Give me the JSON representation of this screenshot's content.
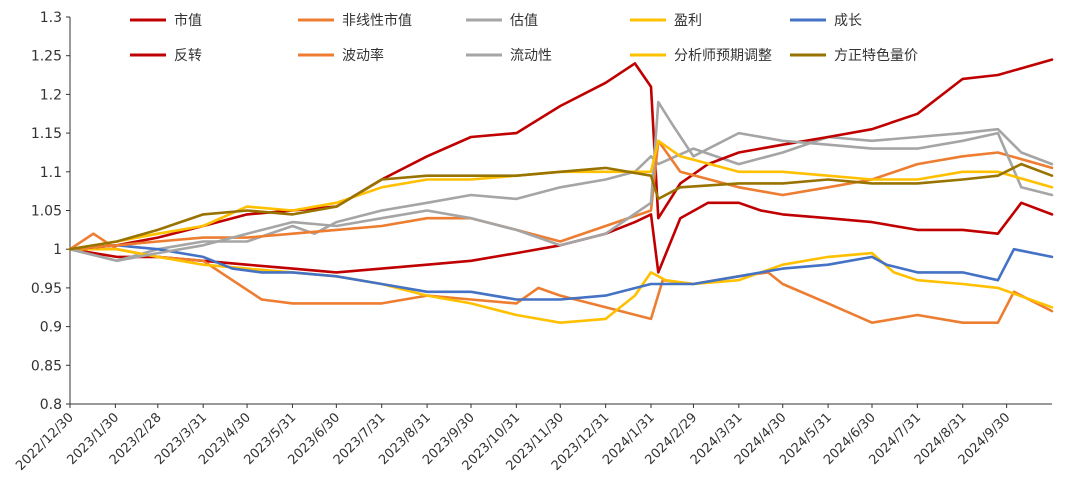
{
  "chart_data": {
    "type": "line",
    "title": "",
    "xlabel": "",
    "ylabel": "",
    "ylim": [
      0.8,
      1.3
    ],
    "yticks": [
      "0.8",
      "0.85",
      "0.9",
      "0.95",
      "1",
      "1.05",
      "1.1",
      "1.15",
      "1.2",
      "1.25",
      "1.3"
    ],
    "x_tick_labels": [
      "2022/12/30",
      "2023/1/30",
      "2023/2/28",
      "2023/3/31",
      "2023/4/30",
      "2023/5/31",
      "2023/6/30",
      "2023/7/31",
      "2023/8/31",
      "2023/9/30",
      "2023/10/31",
      "2023/11/30",
      "2023/12/31",
      "2024/1/31",
      "2024/2/29",
      "2024/3/31",
      "2024/4/30",
      "2024/5/31",
      "2024/6/30",
      "2024/7/31",
      "2024/8/31",
      "2024/9/30"
    ],
    "x_start": "2022/12/30",
    "x_end": "2024/10/31",
    "grid": false,
    "legend_position": "top",
    "series": [
      {
        "name": "市值",
        "color": "#C00000",
        "points": [
          [
            "2022/12/30",
            1.0
          ],
          [
            "2023/1/31",
            0.99
          ],
          [
            "2023/2/28",
            0.99
          ],
          [
            "2023/3/31",
            0.985
          ],
          [
            "2023/4/30",
            0.98
          ],
          [
            "2023/5/31",
            0.975
          ],
          [
            "2023/6/30",
            0.97
          ],
          [
            "2023/7/31",
            0.975
          ],
          [
            "2023/8/31",
            0.98
          ],
          [
            "2023/9/30",
            0.985
          ],
          [
            "2023/10/31",
            0.995
          ],
          [
            "2023/11/30",
            1.005
          ],
          [
            "2023/12/31",
            1.02
          ],
          [
            "2024/1/20",
            1.035
          ],
          [
            "2024/1/31",
            1.045
          ],
          [
            "2024/2/5",
            0.97
          ],
          [
            "2024/2/20",
            1.04
          ],
          [
            "2024/3/10",
            1.06
          ],
          [
            "2024/3/31",
            1.06
          ],
          [
            "2024/4/15",
            1.05
          ],
          [
            "2024/4/30",
            1.045
          ],
          [
            "2024/5/31",
            1.04
          ],
          [
            "2024/6/30",
            1.035
          ],
          [
            "2024/7/31",
            1.025
          ],
          [
            "2024/8/31",
            1.025
          ],
          [
            "2024/9/24",
            1.02
          ],
          [
            "2024/10/10",
            1.06
          ],
          [
            "2024/10/31",
            1.045
          ]
        ]
      },
      {
        "name": "非线性市值",
        "color": "#ED7D31",
        "points": [
          [
            "2022/12/30",
            1.0
          ],
          [
            "2023/1/15",
            1.02
          ],
          [
            "2023/1/31",
            1.0
          ],
          [
            "2023/2/28",
            0.99
          ],
          [
            "2023/3/31",
            0.985
          ],
          [
            "2023/4/20",
            0.96
          ],
          [
            "2023/5/10",
            0.935
          ],
          [
            "2023/5/31",
            0.93
          ],
          [
            "2023/6/30",
            0.93
          ],
          [
            "2023/7/31",
            0.93
          ],
          [
            "2023/8/31",
            0.94
          ],
          [
            "2023/9/30",
            0.935
          ],
          [
            "2023/10/31",
            0.93
          ],
          [
            "2023/11/15",
            0.95
          ],
          [
            "2023/11/30",
            0.94
          ],
          [
            "2023/12/31",
            0.925
          ],
          [
            "2024/1/31",
            0.91
          ],
          [
            "2024/2/8",
            0.96
          ],
          [
            "2024/2/29",
            0.955
          ],
          [
            "2024/3/31",
            0.965
          ],
          [
            "2024/4/20",
            0.97
          ],
          [
            "2024/4/30",
            0.955
          ],
          [
            "2024/5/31",
            0.93
          ],
          [
            "2024/6/30",
            0.905
          ],
          [
            "2024/7/31",
            0.915
          ],
          [
            "2024/8/31",
            0.905
          ],
          [
            "2024/9/24",
            0.905
          ],
          [
            "2024/10/5",
            0.945
          ],
          [
            "2024/10/31",
            0.92
          ]
        ]
      },
      {
        "name": "估值",
        "color": "#A5A5A5",
        "points": [
          [
            "2022/12/30",
            1.0
          ],
          [
            "2023/1/31",
            0.985
          ],
          [
            "2023/2/28",
            1.0
          ],
          [
            "2023/3/31",
            1.01
          ],
          [
            "2023/4/30",
            1.01
          ],
          [
            "2023/5/31",
            1.03
          ],
          [
            "2023/6/15",
            1.02
          ],
          [
            "2023/6/30",
            1.035
          ],
          [
            "2023/7/31",
            1.05
          ],
          [
            "2023/8/31",
            1.06
          ],
          [
            "2023/9/30",
            1.07
          ],
          [
            "2023/10/31",
            1.065
          ],
          [
            "2023/11/30",
            1.08
          ],
          [
            "2023/12/31",
            1.09
          ],
          [
            "2024/1/20",
            1.1
          ],
          [
            "2024/1/31",
            1.12
          ],
          [
            "2024/2/5",
            1.11
          ],
          [
            "2024/2/29",
            1.13
          ],
          [
            "2024/3/31",
            1.11
          ],
          [
            "2024/4/30",
            1.125
          ],
          [
            "2024/5/31",
            1.145
          ],
          [
            "2024/6/30",
            1.14
          ],
          [
            "2024/7/31",
            1.145
          ],
          [
            "2024/8/31",
            1.15
          ],
          [
            "2024/9/24",
            1.155
          ],
          [
            "2024/10/10",
            1.125
          ],
          [
            "2024/10/31",
            1.11
          ]
        ]
      },
      {
        "name": "盈利",
        "color": "#FFC000",
        "points": [
          [
            "2022/12/30",
            1.0
          ],
          [
            "2023/1/31",
            1.0
          ],
          [
            "2023/2/28",
            0.99
          ],
          [
            "2023/3/31",
            0.98
          ],
          [
            "2023/4/30",
            0.975
          ],
          [
            "2023/5/31",
            0.97
          ],
          [
            "2023/6/30",
            0.965
          ],
          [
            "2023/7/31",
            0.955
          ],
          [
            "2023/8/31",
            0.94
          ],
          [
            "2023/9/30",
            0.93
          ],
          [
            "2023/10/31",
            0.915
          ],
          [
            "2023/11/30",
            0.905
          ],
          [
            "2023/12/31",
            0.91
          ],
          [
            "2024/1/20",
            0.94
          ],
          [
            "2024/1/31",
            0.97
          ],
          [
            "2024/2/10",
            0.96
          ],
          [
            "2024/2/29",
            0.955
          ],
          [
            "2024/3/31",
            0.96
          ],
          [
            "2024/4/30",
            0.98
          ],
          [
            "2024/5/31",
            0.99
          ],
          [
            "2024/6/30",
            0.995
          ],
          [
            "2024/7/15",
            0.97
          ],
          [
            "2024/7/31",
            0.96
          ],
          [
            "2024/8/31",
            0.955
          ],
          [
            "2024/9/24",
            0.95
          ],
          [
            "2024/10/31",
            0.925
          ]
        ]
      },
      {
        "name": "成长",
        "color": "#4472C4",
        "points": [
          [
            "2022/12/30",
            1.0
          ],
          [
            "2023/1/31",
            1.005
          ],
          [
            "2023/2/28",
            1.0
          ],
          [
            "2023/3/31",
            0.99
          ],
          [
            "2023/4/20",
            0.975
          ],
          [
            "2023/5/10",
            0.97
          ],
          [
            "2023/5/31",
            0.97
          ],
          [
            "2023/6/30",
            0.965
          ],
          [
            "2023/7/31",
            0.955
          ],
          [
            "2023/8/31",
            0.945
          ],
          [
            "2023/9/30",
            0.945
          ],
          [
            "2023/10/31",
            0.935
          ],
          [
            "2023/11/30",
            0.935
          ],
          [
            "2023/12/31",
            0.94
          ],
          [
            "2024/1/31",
            0.955
          ],
          [
            "2024/2/29",
            0.955
          ],
          [
            "2024/3/31",
            0.965
          ],
          [
            "2024/4/30",
            0.975
          ],
          [
            "2024/5/31",
            0.98
          ],
          [
            "2024/6/30",
            0.99
          ],
          [
            "2024/7/10",
            0.98
          ],
          [
            "2024/7/31",
            0.97
          ],
          [
            "2024/8/31",
            0.97
          ],
          [
            "2024/9/24",
            0.96
          ],
          [
            "2024/10/5",
            1.0
          ],
          [
            "2024/10/31",
            0.99
          ]
        ]
      },
      {
        "name": "反转",
        "color": "#C00000",
        "points": [
          [
            "2022/12/30",
            1.0
          ],
          [
            "2023/1/31",
            1.005
          ],
          [
            "2023/2/28",
            1.015
          ],
          [
            "2023/3/31",
            1.03
          ],
          [
            "2023/4/30",
            1.045
          ],
          [
            "2023/5/31",
            1.05
          ],
          [
            "2023/6/30",
            1.055
          ],
          [
            "2023/7/31",
            1.09
          ],
          [
            "2023/8/31",
            1.12
          ],
          [
            "2023/9/30",
            1.145
          ],
          [
            "2023/10/31",
            1.15
          ],
          [
            "2023/11/30",
            1.185
          ],
          [
            "2023/12/31",
            1.215
          ],
          [
            "2024/1/20",
            1.24
          ],
          [
            "2024/1/31",
            1.21
          ],
          [
            "2024/2/5",
            1.04
          ],
          [
            "2024/2/20",
            1.085
          ],
          [
            "2024/3/10",
            1.11
          ],
          [
            "2024/3/31",
            1.125
          ],
          [
            "2024/4/30",
            1.135
          ],
          [
            "2024/5/31",
            1.145
          ],
          [
            "2024/6/30",
            1.155
          ],
          [
            "2024/7/31",
            1.175
          ],
          [
            "2024/8/31",
            1.22
          ],
          [
            "2024/9/24",
            1.225
          ],
          [
            "2024/10/31",
            1.245
          ]
        ]
      },
      {
        "name": "波动率",
        "color": "#ED7D31",
        "points": [
          [
            "2022/12/30",
            1.0
          ],
          [
            "2023/1/31",
            1.005
          ],
          [
            "2023/2/28",
            1.01
          ],
          [
            "2023/3/31",
            1.015
          ],
          [
            "2023/4/30",
            1.015
          ],
          [
            "2023/5/31",
            1.02
          ],
          [
            "2023/6/30",
            1.025
          ],
          [
            "2023/7/31",
            1.03
          ],
          [
            "2023/8/31",
            1.04
          ],
          [
            "2023/9/30",
            1.04
          ],
          [
            "2023/10/31",
            1.025
          ],
          [
            "2023/11/30",
            1.01
          ],
          [
            "2023/12/31",
            1.03
          ],
          [
            "2024/1/31",
            1.05
          ],
          [
            "2024/2/5",
            1.14
          ],
          [
            "2024/2/20",
            1.1
          ],
          [
            "2024/3/31",
            1.08
          ],
          [
            "2024/4/30",
            1.07
          ],
          [
            "2024/5/31",
            1.08
          ],
          [
            "2024/6/30",
            1.09
          ],
          [
            "2024/7/31",
            1.11
          ],
          [
            "2024/8/31",
            1.12
          ],
          [
            "2024/9/24",
            1.125
          ],
          [
            "2024/10/31",
            1.105
          ]
        ]
      },
      {
        "name": "流动性",
        "color": "#A5A5A5",
        "points": [
          [
            "2022/12/30",
            1.0
          ],
          [
            "2023/1/31",
            0.985
          ],
          [
            "2023/2/28",
            0.995
          ],
          [
            "2023/3/31",
            1.005
          ],
          [
            "2023/4/30",
            1.02
          ],
          [
            "2023/5/31",
            1.035
          ],
          [
            "2023/6/30",
            1.03
          ],
          [
            "2023/7/31",
            1.04
          ],
          [
            "2023/8/31",
            1.05
          ],
          [
            "2023/9/30",
            1.04
          ],
          [
            "2023/10/31",
            1.025
          ],
          [
            "2023/11/30",
            1.005
          ],
          [
            "2023/12/31",
            1.02
          ],
          [
            "2024/1/31",
            1.06
          ],
          [
            "2024/2/5",
            1.19
          ],
          [
            "2024/2/15",
            1.16
          ],
          [
            "2024/2/29",
            1.12
          ],
          [
            "2024/3/31",
            1.15
          ],
          [
            "2024/4/30",
            1.14
          ],
          [
            "2024/5/31",
            1.135
          ],
          [
            "2024/6/30",
            1.13
          ],
          [
            "2024/7/31",
            1.13
          ],
          [
            "2024/8/31",
            1.14
          ],
          [
            "2024/9/24",
            1.15
          ],
          [
            "2024/10/10",
            1.08
          ],
          [
            "2024/10/31",
            1.07
          ]
        ]
      },
      {
        "name": "分析师预期调整",
        "color": "#FFC000",
        "points": [
          [
            "2022/12/30",
            1.0
          ],
          [
            "2023/1/31",
            1.01
          ],
          [
            "2023/2/28",
            1.02
          ],
          [
            "2023/3/31",
            1.03
          ],
          [
            "2023/4/30",
            1.055
          ],
          [
            "2023/5/31",
            1.05
          ],
          [
            "2023/6/30",
            1.06
          ],
          [
            "2023/7/31",
            1.08
          ],
          [
            "2023/8/31",
            1.09
          ],
          [
            "2023/9/30",
            1.09
          ],
          [
            "2023/10/31",
            1.095
          ],
          [
            "2023/11/30",
            1.1
          ],
          [
            "2023/12/31",
            1.1
          ],
          [
            "2024/1/31",
            1.1
          ],
          [
            "2024/2/5",
            1.14
          ],
          [
            "2024/2/20",
            1.12
          ],
          [
            "2024/3/31",
            1.1
          ],
          [
            "2024/4/30",
            1.1
          ],
          [
            "2024/5/31",
            1.095
          ],
          [
            "2024/6/30",
            1.09
          ],
          [
            "2024/7/31",
            1.09
          ],
          [
            "2024/8/31",
            1.1
          ],
          [
            "2024/9/24",
            1.1
          ],
          [
            "2024/10/31",
            1.08
          ]
        ]
      },
      {
        "name": "方正特色量价",
        "color": "#997300",
        "points": [
          [
            "2022/12/30",
            1.0
          ],
          [
            "2023/1/31",
            1.01
          ],
          [
            "2023/2/28",
            1.025
          ],
          [
            "2023/3/31",
            1.045
          ],
          [
            "2023/4/30",
            1.05
          ],
          [
            "2023/5/31",
            1.045
          ],
          [
            "2023/6/30",
            1.055
          ],
          [
            "2023/7/31",
            1.09
          ],
          [
            "2023/8/31",
            1.095
          ],
          [
            "2023/9/30",
            1.095
          ],
          [
            "2023/10/31",
            1.095
          ],
          [
            "2023/11/30",
            1.1
          ],
          [
            "2023/12/31",
            1.105
          ],
          [
            "2024/1/31",
            1.095
          ],
          [
            "2024/2/5",
            1.065
          ],
          [
            "2024/2/20",
            1.08
          ],
          [
            "2024/3/31",
            1.085
          ],
          [
            "2024/4/30",
            1.085
          ],
          [
            "2024/5/31",
            1.09
          ],
          [
            "2024/6/30",
            1.085
          ],
          [
            "2024/7/31",
            1.085
          ],
          [
            "2024/8/31",
            1.09
          ],
          [
            "2024/9/24",
            1.095
          ],
          [
            "2024/10/10",
            1.11
          ],
          [
            "2024/10/31",
            1.095
          ]
        ]
      }
    ]
  }
}
